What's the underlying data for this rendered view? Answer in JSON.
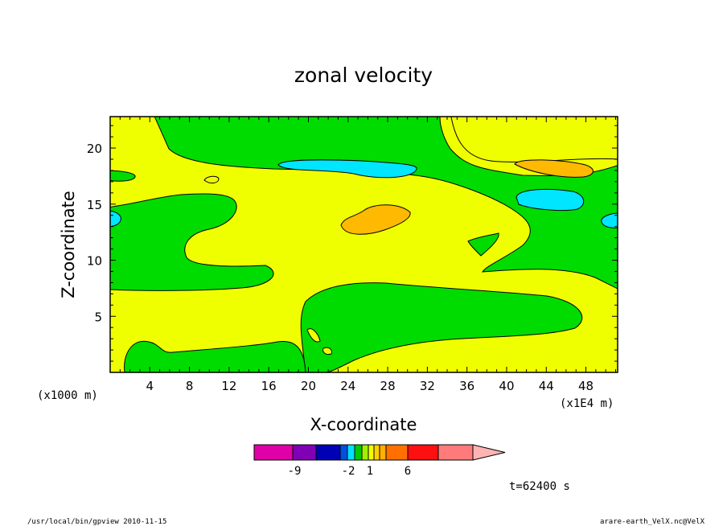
{
  "chart_data": {
    "type": "heatmap",
    "title": "zonal velocity",
    "xlabel": "X-coordinate",
    "ylabel": "Z-coordinate",
    "x_unit_left": "(x1000 m)",
    "x_unit_right": "(x1E4 m)",
    "xlim": [
      0,
      51.2
    ],
    "ylim": [
      0,
      22.8
    ],
    "x_ticks": [
      "4",
      "8",
      "12",
      "16",
      "20",
      "24",
      "28",
      "32",
      "36",
      "40",
      "44",
      "48"
    ],
    "y_ticks": [
      "5",
      "10",
      "15",
      "20"
    ],
    "grid": false,
    "colorbar": {
      "colors": [
        "#e000a8",
        "#8000b4",
        "#0000b4",
        "#0050e0",
        "#00e0ff",
        "#00c800",
        "#a0f000",
        "#f0ff00",
        "#ffd000",
        "#ffb000",
        "#ff7000",
        "#ff1010",
        "#ff7b7b",
        "#ffb4b4"
      ],
      "labels": [
        "-9",
        "-2",
        "1",
        "6"
      ]
    },
    "time_label": "t=62400 s",
    "regions": [
      {
        "name": "yellow",
        "level": "0 to 1",
        "color": "#f0ff00"
      },
      {
        "name": "green",
        "level": "-1 to 0",
        "color": "#00dc00"
      },
      {
        "name": "cyan",
        "level": "-2 to -1",
        "color": "#00e6ff"
      },
      {
        "name": "orange",
        "level": "1 to 2",
        "color": "#ffb900"
      }
    ]
  },
  "footer": {
    "left": "/usr/local/bin/gpview  2010-11-15",
    "right": "arare-earth_VelX.nc@VelX"
  }
}
